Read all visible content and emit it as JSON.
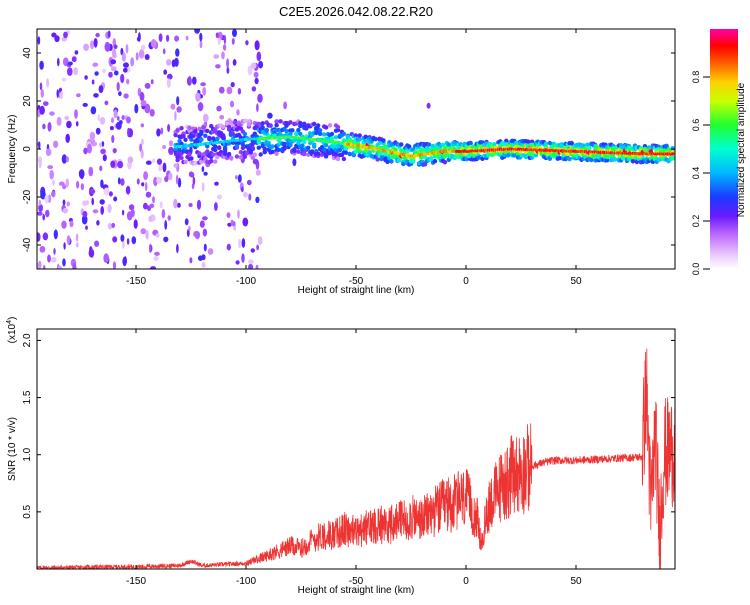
{
  "title": "C2E5.2026.042.08.22.R20",
  "chart_data": [
    {
      "type": "heatmap",
      "xlabel": "Height of straight line (km)",
      "ylabel": "Frequency (Hz)",
      "xlim": [
        -195,
        95
      ],
      "ylim": [
        -50,
        50
      ],
      "x_ticks": [
        -150,
        -100,
        -50,
        0,
        50
      ],
      "y_ticks": [
        -40,
        -20,
        0,
        20,
        40
      ],
      "x_tick_labels": [
        "-150",
        "-100",
        "-50",
        "0",
        "50"
      ],
      "y_tick_labels": [
        "-40",
        "-20",
        "0",
        "20",
        "40"
      ],
      "colorbar": {
        "label": "Normalized spectral amplitude",
        "range": [
          0,
          1
        ],
        "ticks": [
          0.0,
          0.2,
          0.4,
          0.6,
          0.8
        ],
        "tick_labels": [
          "0.0",
          "0.2",
          "0.4",
          "0.6",
          "0.8"
        ],
        "colormap": "rainbow (white-violet-blue-cyan-green-yellow-red-magenta)"
      },
      "ridge_center_hz": [
        {
          "x": -130,
          "y": 1
        },
        {
          "x": -100,
          "y": 4
        },
        {
          "x": -80,
          "y": 5
        },
        {
          "x": -60,
          "y": 3
        },
        {
          "x": -40,
          "y": 0
        },
        {
          "x": -25,
          "y": -3
        },
        {
          "x": -10,
          "y": -1
        },
        {
          "x": 0,
          "y": -1
        },
        {
          "x": 20,
          "y": 0
        },
        {
          "x": 50,
          "y": -1
        },
        {
          "x": 80,
          "y": -2
        },
        {
          "x": 93,
          "y": -2
        }
      ]
    },
    {
      "type": "line",
      "xlabel": "Height of straight line (km)",
      "ylabel": "SNR (10 * v/v)",
      "y_scale_label": "(x10",
      "y_scale_exponent": "4",
      "xlim": [
        -195,
        95
      ],
      "ylim": [
        0,
        2.1
      ],
      "x_ticks": [
        -150,
        -100,
        -50,
        0,
        50
      ],
      "y_ticks": [
        0.5,
        1.0,
        1.5,
        2.0
      ],
      "x_tick_labels": [
        "-150",
        "-100",
        "-50",
        "0",
        "50"
      ],
      "y_tick_labels": [
        "0.5",
        "1.0",
        "1.5",
        "2.0"
      ],
      "color": "#ee3333",
      "series": [
        {
          "x": [
            -195,
            -150,
            -130,
            -125,
            -120,
            -110,
            -100,
            -90,
            -80,
            -75,
            -70,
            -65,
            -60,
            -55,
            -50,
            -45,
            -40,
            -35,
            -30,
            -25,
            -20,
            -15,
            -10,
            -5,
            0,
            5,
            7,
            10,
            15,
            20,
            25,
            30,
            35,
            40,
            50,
            60,
            70,
            80,
            82,
            84,
            86,
            88,
            90,
            95
          ],
          "y": [
            0.01,
            0.02,
            0.03,
            0.07,
            0.03,
            0.04,
            0.05,
            0.12,
            0.2,
            0.18,
            0.25,
            0.3,
            0.3,
            0.35,
            0.32,
            0.36,
            0.4,
            0.38,
            0.42,
            0.45,
            0.43,
            0.5,
            0.55,
            0.58,
            0.62,
            0.45,
            0.2,
            0.55,
            0.7,
            0.8,
            0.85,
            0.9,
            0.93,
            0.95,
            0.95,
            0.96,
            0.97,
            0.98,
            1.6,
            0.5,
            1.2,
            0.3,
            1.0,
            1.05
          ]
        }
      ]
    }
  ]
}
